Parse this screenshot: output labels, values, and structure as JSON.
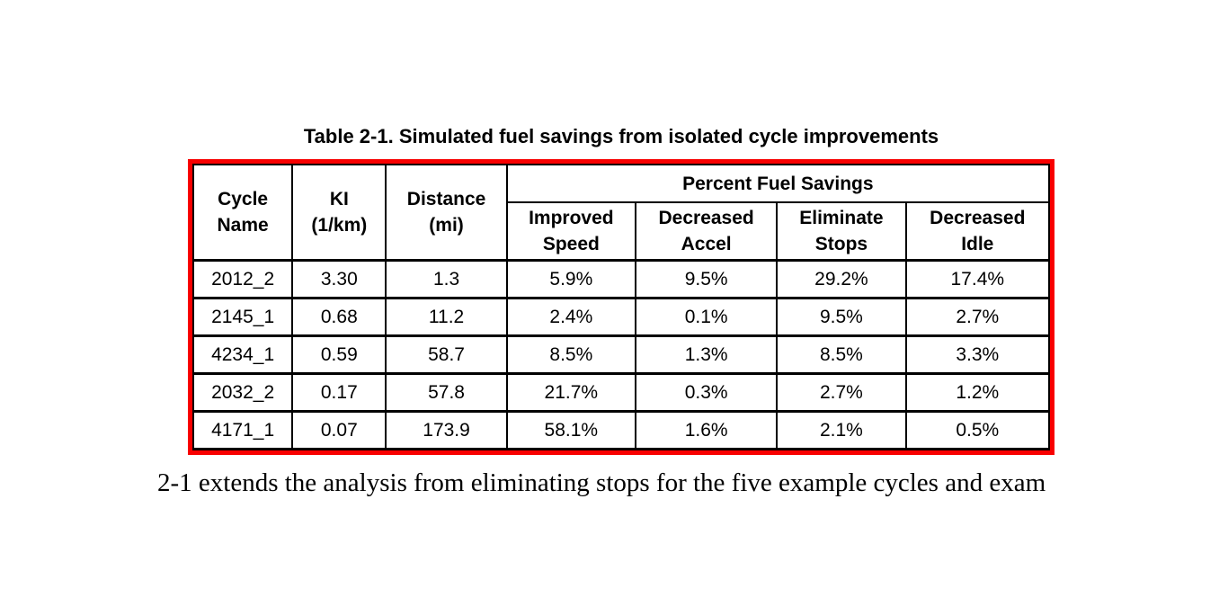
{
  "page": {
    "background": "#ffffff",
    "frame_color": "#f80000",
    "grid_color": "#000000"
  },
  "table": {
    "caption": "Table 2-1. Simulated fuel savings from isolated cycle improvements",
    "header": {
      "cycle_name": "Cycle\nName",
      "ki": "KI\n(1/km)",
      "distance": "Distance\n(mi)",
      "group": "Percent Fuel Savings",
      "sub": [
        "Improved\nSpeed",
        "Decreased\nAccel",
        "Eliminate\nStops",
        "Decreased\nIdle"
      ]
    },
    "rows": [
      [
        "2012_2",
        "3.30",
        "1.3",
        "5.9%",
        "9.5%",
        "29.2%",
        "17.4%"
      ],
      [
        "2145_1",
        "0.68",
        "11.2",
        "2.4%",
        "0.1%",
        "9.5%",
        "2.7%"
      ],
      [
        "4234_1",
        "0.59",
        "58.7",
        "8.5%",
        "1.3%",
        "8.5%",
        "3.3%"
      ],
      [
        "2032_2",
        "0.17",
        "57.8",
        "21.7%",
        "0.3%",
        "2.7%",
        "1.2%"
      ],
      [
        "4171_1",
        "0.07",
        "173.9",
        "58.1%",
        "1.6%",
        "2.1%",
        "0.5%"
      ]
    ]
  },
  "body_text": "2-1 extends the analysis from eliminating stops for the five example cycles and exam"
}
